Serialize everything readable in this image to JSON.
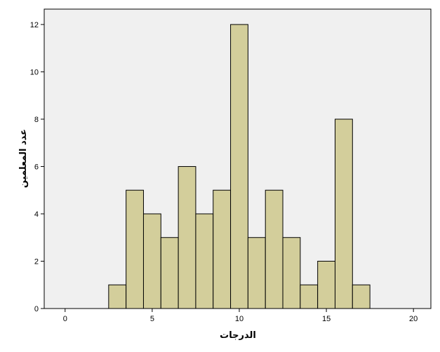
{
  "chart_data": {
    "type": "bar",
    "subtype": "histogram",
    "xlabel": "الدرجات",
    "ylabel": "عدد المعلمين",
    "xlim": [
      -1.2,
      21.0
    ],
    "ylim": [
      0,
      12.65
    ],
    "bin_width": 1,
    "x_ticks": [
      "0",
      "5",
      "10",
      "15",
      "20"
    ],
    "y_ticks": [
      "0",
      "2",
      "4",
      "6",
      "8",
      "10",
      "12"
    ],
    "x": [
      3,
      4,
      5,
      6,
      7,
      8,
      9,
      10,
      11,
      12,
      13,
      14,
      15,
      16,
      17
    ],
    "values": [
      1,
      5,
      4,
      3,
      6,
      4,
      5,
      12,
      3,
      5,
      3,
      1,
      2,
      8,
      1
    ],
    "colors": {
      "plot_background": "#f0f0f0",
      "bar_fill": "#d3ce9b",
      "bar_stroke": "#000000"
    },
    "grid": false
  }
}
